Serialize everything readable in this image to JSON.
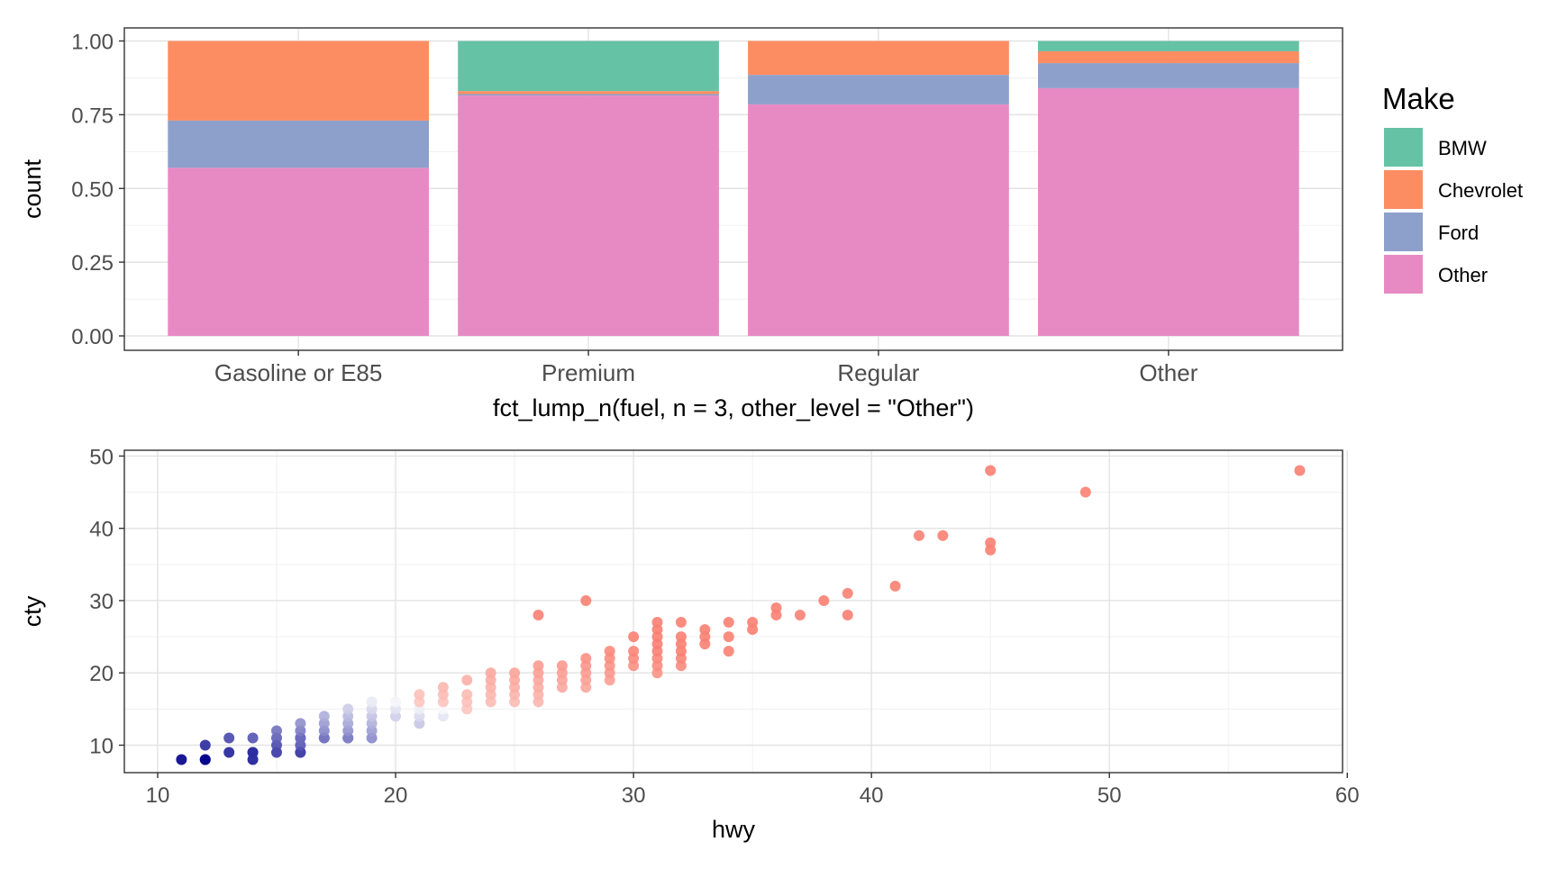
{
  "chart_data": [
    {
      "type": "bar",
      "subtype": "stacked-fill",
      "categories": [
        "Gasoline or E85",
        "Premium",
        "Regular",
        "Other"
      ],
      "series": [
        {
          "name": "BMW",
          "color": "#66C2A5",
          "values": [
            0.0,
            0.17,
            0.0,
            0.035
          ]
        },
        {
          "name": "Chevrolet",
          "color": "#FC8D62",
          "values": [
            0.27,
            0.01,
            0.115,
            0.04
          ]
        },
        {
          "name": "Ford",
          "color": "#8DA0CB",
          "values": [
            0.16,
            0.005,
            0.1,
            0.085
          ]
        },
        {
          "name": "Other",
          "color": "#E78AC3",
          "values": [
            0.57,
            0.815,
            0.785,
            0.84
          ]
        }
      ],
      "xlabel": "fct_lump_n(fuel, n = 3, other_level = \"Other\")",
      "ylabel": "count",
      "ylim": [
        0,
        1
      ],
      "yticks": [
        "0.00",
        "0.25",
        "0.50",
        "0.75",
        "1.00"
      ],
      "legend": {
        "title": "Make",
        "position": "right"
      },
      "grid": true
    },
    {
      "type": "scatter",
      "xlabel": "hwy",
      "ylabel": "cty",
      "xlim": [
        8.6,
        59.8
      ],
      "ylim": [
        6.2,
        50.8
      ],
      "xticks": [
        "10",
        "20",
        "30",
        "40",
        "50",
        "60"
      ],
      "yticks": [
        "10",
        "20",
        "30",
        "40",
        "50"
      ],
      "color_scale": {
        "low": "#00008B",
        "mid": "#FFFFFF",
        "high": "#FA8072",
        "midpoint_ratio": 1.0
      },
      "grid": true,
      "points": [
        [
          11,
          8
        ],
        [
          12,
          8
        ],
        [
          12,
          8
        ],
        [
          12,
          10
        ],
        [
          13,
          9
        ],
        [
          13,
          11
        ],
        [
          14,
          8
        ],
        [
          14,
          9
        ],
        [
          14,
          9
        ],
        [
          14,
          11
        ],
        [
          15,
          9
        ],
        [
          15,
          10
        ],
        [
          15,
          11
        ],
        [
          15,
          12
        ],
        [
          16,
          9
        ],
        [
          16,
          9
        ],
        [
          16,
          10
        ],
        [
          16,
          11
        ],
        [
          16,
          11
        ],
        [
          16,
          12
        ],
        [
          16,
          13
        ],
        [
          17,
          11
        ],
        [
          17,
          11
        ],
        [
          17,
          12
        ],
        [
          17,
          13
        ],
        [
          17,
          14
        ],
        [
          18,
          11
        ],
        [
          18,
          11
        ],
        [
          18,
          12
        ],
        [
          18,
          13
        ],
        [
          18,
          14
        ],
        [
          18,
          15
        ],
        [
          19,
          11
        ],
        [
          19,
          12
        ],
        [
          19,
          13
        ],
        [
          19,
          14
        ],
        [
          19,
          15
        ],
        [
          19,
          16
        ],
        [
          20,
          14
        ],
        [
          20,
          15
        ],
        [
          20,
          16
        ],
        [
          21,
          13
        ],
        [
          21,
          14
        ],
        [
          21,
          15
        ],
        [
          21,
          16
        ],
        [
          21,
          17
        ],
        [
          22,
          14
        ],
        [
          22,
          15
        ],
        [
          22,
          16
        ],
        [
          22,
          17
        ],
        [
          22,
          18
        ],
        [
          23,
          15
        ],
        [
          23,
          16
        ],
        [
          23,
          17
        ],
        [
          23,
          19
        ],
        [
          24,
          16
        ],
        [
          24,
          17
        ],
        [
          24,
          18
        ],
        [
          24,
          19
        ],
        [
          24,
          20
        ],
        [
          25,
          16
        ],
        [
          25,
          17
        ],
        [
          25,
          18
        ],
        [
          25,
          19
        ],
        [
          25,
          20
        ],
        [
          26,
          16
        ],
        [
          26,
          17
        ],
        [
          26,
          18
        ],
        [
          26,
          19
        ],
        [
          26,
          20
        ],
        [
          26,
          21
        ],
        [
          26,
          28
        ],
        [
          27,
          18
        ],
        [
          27,
          19
        ],
        [
          27,
          20
        ],
        [
          27,
          21
        ],
        [
          28,
          18
        ],
        [
          28,
          19
        ],
        [
          28,
          20
        ],
        [
          28,
          21
        ],
        [
          28,
          22
        ],
        [
          28,
          30
        ],
        [
          29,
          19
        ],
        [
          29,
          20
        ],
        [
          29,
          21
        ],
        [
          29,
          22
        ],
        [
          29,
          23
        ],
        [
          30,
          21
        ],
        [
          30,
          22
        ],
        [
          30,
          23
        ],
        [
          30,
          25
        ],
        [
          31,
          20
        ],
        [
          31,
          21
        ],
        [
          31,
          22
        ],
        [
          31,
          23
        ],
        [
          31,
          24
        ],
        [
          31,
          25
        ],
        [
          31,
          26
        ],
        [
          31,
          27
        ],
        [
          32,
          21
        ],
        [
          32,
          22
        ],
        [
          32,
          23
        ],
        [
          32,
          24
        ],
        [
          32,
          25
        ],
        [
          32,
          27
        ],
        [
          33,
          24
        ],
        [
          33,
          25
        ],
        [
          33,
          26
        ],
        [
          34,
          23
        ],
        [
          34,
          25
        ],
        [
          34,
          27
        ],
        [
          35,
          26
        ],
        [
          35,
          27
        ],
        [
          36,
          28
        ],
        [
          36,
          29
        ],
        [
          37,
          28
        ],
        [
          38,
          30
        ],
        [
          39,
          28
        ],
        [
          39,
          31
        ],
        [
          41,
          32
        ],
        [
          42,
          39
        ],
        [
          43,
          39
        ],
        [
          45,
          37
        ],
        [
          45,
          38
        ],
        [
          45,
          48
        ],
        [
          49,
          45
        ],
        [
          58,
          48
        ]
      ]
    }
  ]
}
